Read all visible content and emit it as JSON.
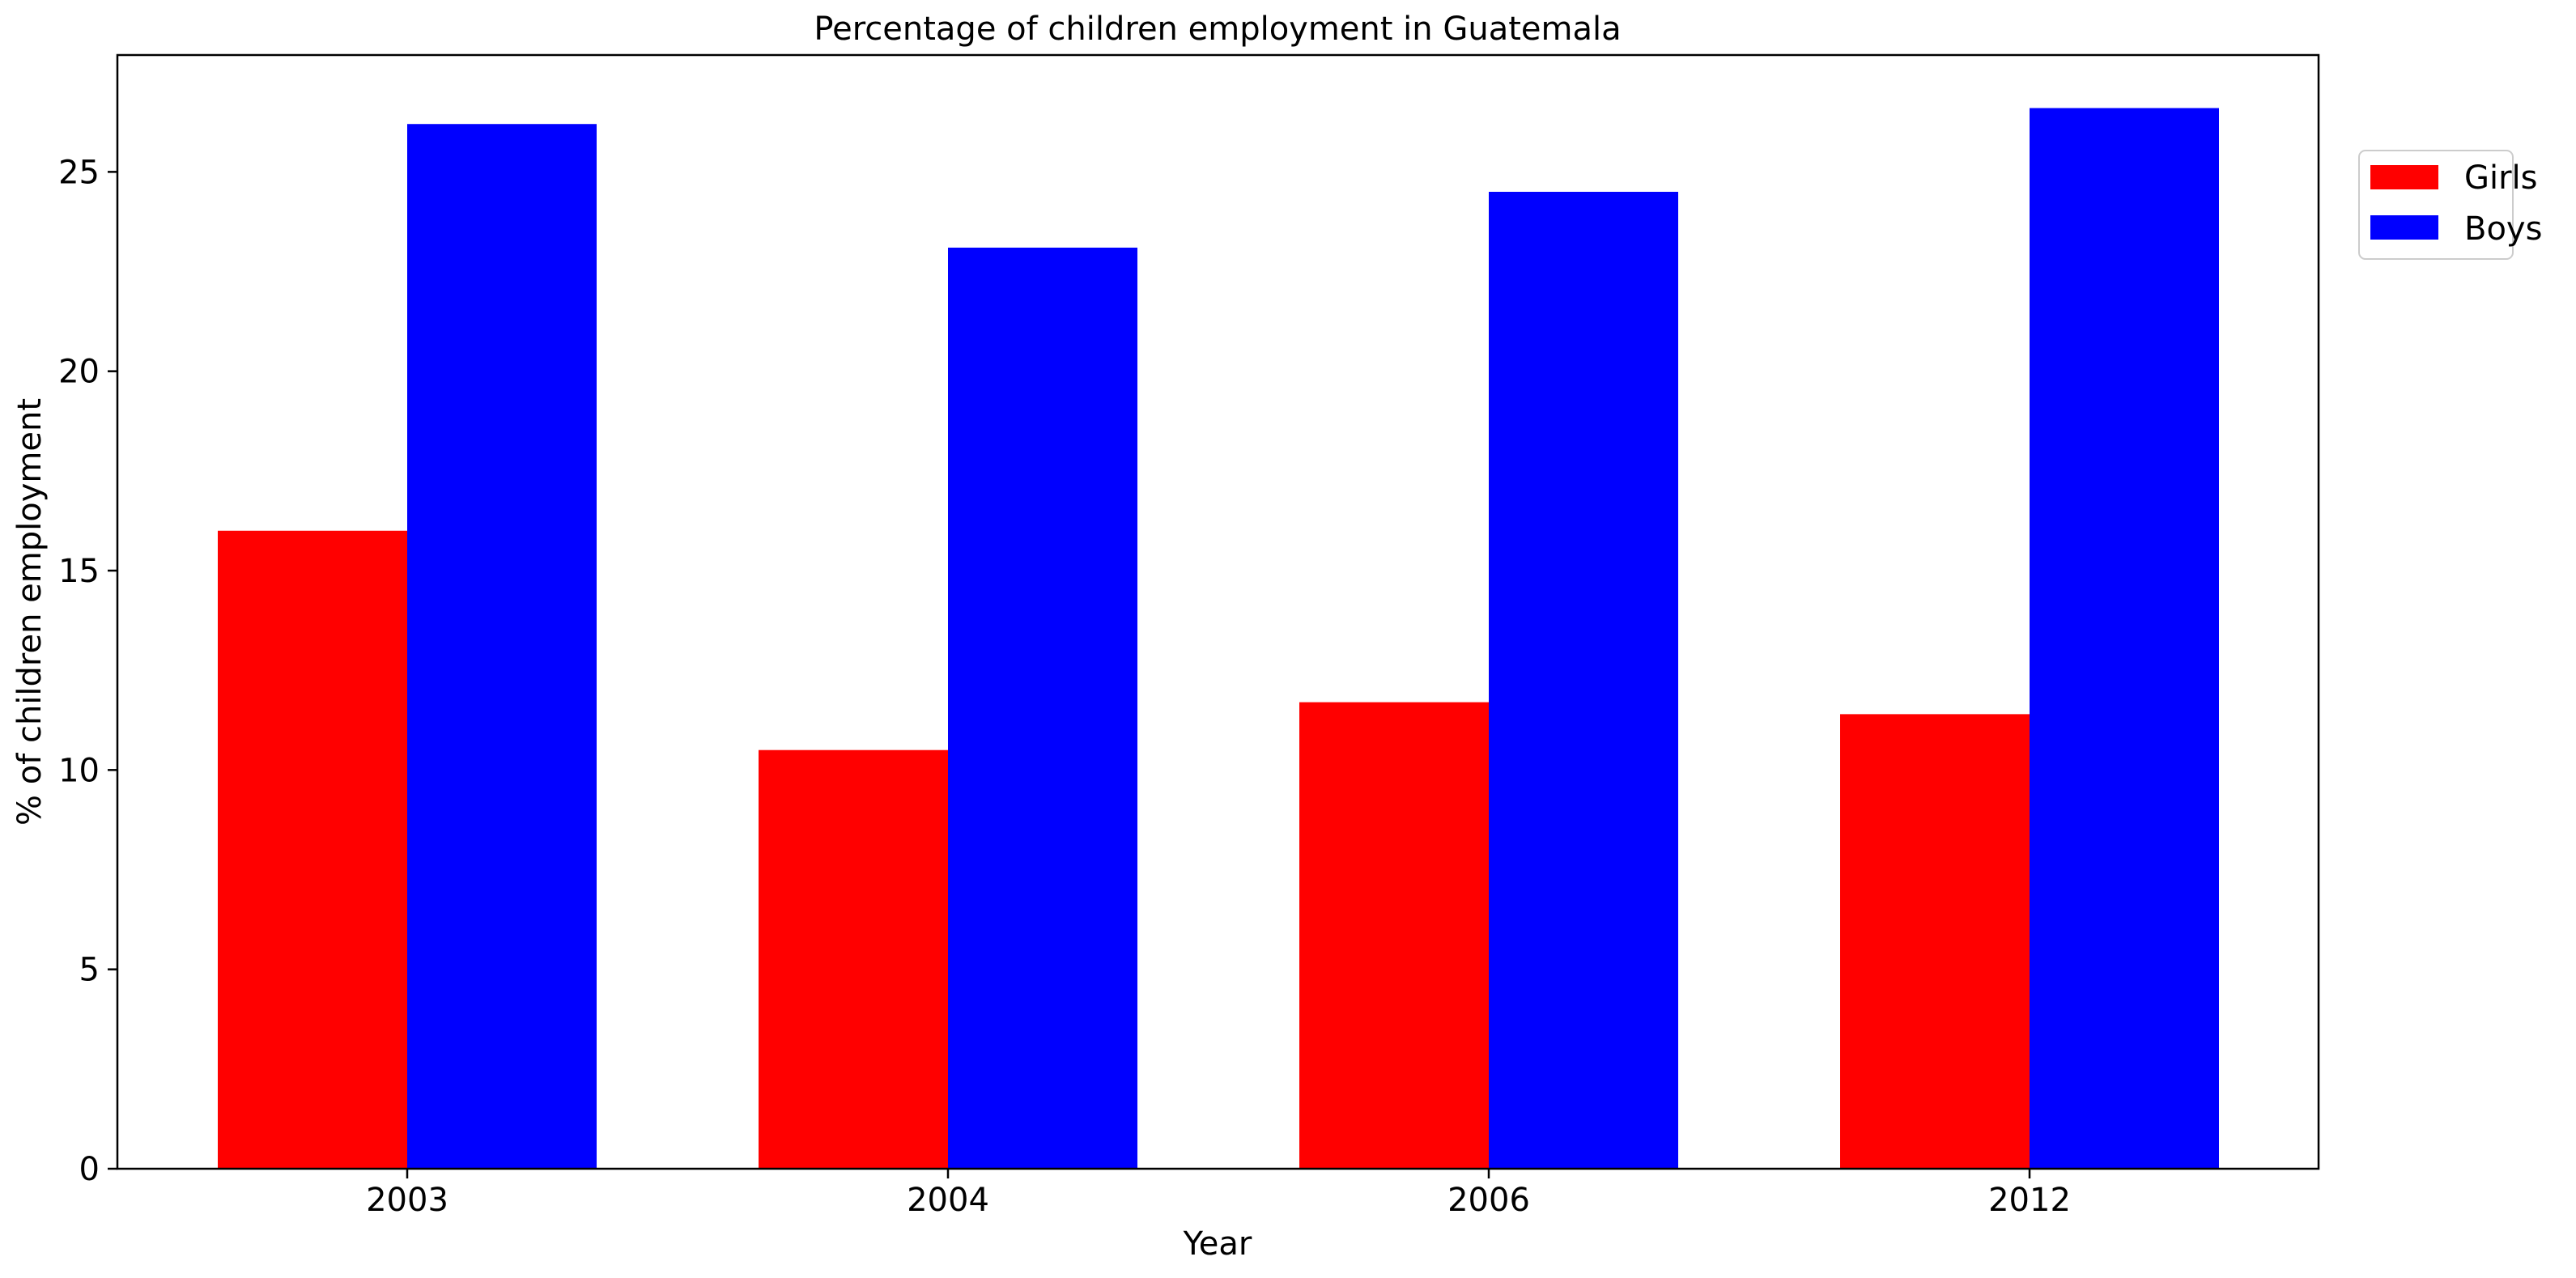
{
  "chart_data": {
    "type": "bar",
    "title": "Percentage of children employment in Guatemala",
    "xlabel": "Year",
    "ylabel": "% of children employment",
    "categories": [
      "2003",
      "2004",
      "2006",
      "2012"
    ],
    "series": [
      {
        "name": "Girls",
        "color": "#ff0000",
        "values": [
          16.0,
          10.5,
          11.7,
          11.4
        ]
      },
      {
        "name": "Boys",
        "color": "#0000ff",
        "values": [
          26.2,
          23.1,
          24.5,
          26.6
        ]
      }
    ],
    "ylim": [
      0,
      27.93
    ],
    "yticks": [
      0,
      5,
      10,
      15,
      20,
      25
    ],
    "grid": false,
    "legend_position": "outside-top-right"
  }
}
